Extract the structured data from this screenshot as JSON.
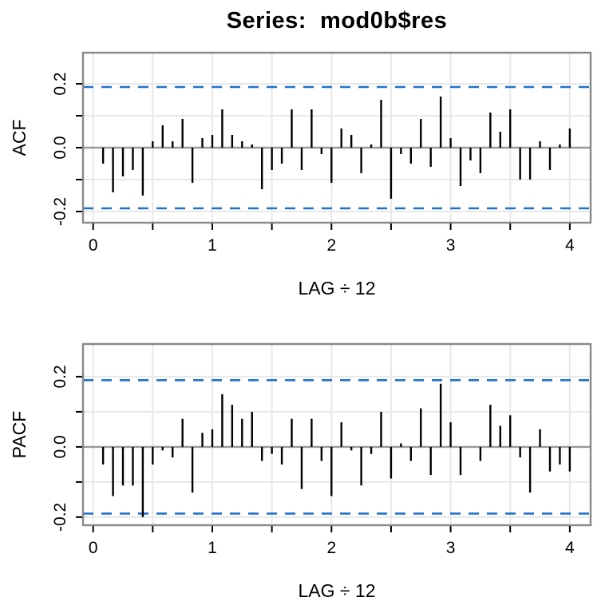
{
  "title": "Series:  mod0b$res",
  "colors": {
    "background": "#ffffff",
    "bar": "#000000",
    "box_border": "#888888",
    "zero_line": "#999999",
    "grid": "#e8e8e8",
    "ci_line": "#2273c8",
    "text": "#000000"
  },
  "chart_data": [
    {
      "type": "bar",
      "name": "acf",
      "ylabel": "ACF",
      "xlabel": "LAG ÷ 12",
      "lag_divisor": 12,
      "ci": 0.19,
      "ci_style": "dashed",
      "grid": true,
      "legend": null,
      "xlim": [
        -0.085,
        4.175
      ],
      "ylim": [
        -0.235,
        0.2975
      ],
      "xticks": [
        0,
        0.5,
        1,
        1.5,
        2,
        2.5,
        3,
        3.5,
        4
      ],
      "xtick_labels": [
        "0",
        "",
        "1",
        "",
        "2",
        "",
        "3",
        "",
        "4"
      ],
      "yticks": [
        0.2,
        0.1,
        0,
        -0.1,
        -0.2
      ],
      "ytick_labels": [
        "0.2",
        "",
        "0.0",
        "",
        "-0.2"
      ],
      "lags": [
        1,
        2,
        3,
        4,
        5,
        6,
        7,
        8,
        9,
        10,
        11,
        12,
        13,
        14,
        15,
        16,
        17,
        18,
        19,
        20,
        21,
        22,
        23,
        24,
        25,
        26,
        27,
        28,
        29,
        30,
        31,
        32,
        33,
        34,
        35,
        36,
        37,
        38,
        39,
        40,
        41,
        42,
        43,
        44,
        45,
        46,
        47,
        48
      ],
      "values": [
        -0.05,
        -0.14,
        -0.09,
        -0.07,
        -0.15,
        0.02,
        0.07,
        0.02,
        0.09,
        -0.11,
        0.03,
        0.04,
        0.12,
        0.04,
        0.02,
        0.01,
        -0.13,
        -0.07,
        -0.05,
        0.12,
        -0.07,
        0.12,
        -0.02,
        -0.11,
        0.06,
        0.04,
        -0.08,
        0.01,
        0.15,
        -0.16,
        -0.02,
        -0.05,
        0.09,
        -0.06,
        0.16,
        0.03,
        -0.12,
        -0.04,
        -0.08,
        0.11,
        0.05,
        0.12,
        -0.1,
        -0.1,
        0.02,
        -0.07,
        0.01,
        0.06
      ]
    },
    {
      "type": "bar",
      "name": "pacf",
      "ylabel": "PACF",
      "xlabel": "LAG ÷ 12",
      "lag_divisor": 12,
      "ci": 0.19,
      "ci_style": "dashed",
      "grid": true,
      "legend": null,
      "xlim": [
        -0.085,
        4.175
      ],
      "ylim": [
        -0.223,
        0.293
      ],
      "xticks": [
        0,
        0.5,
        1,
        1.5,
        2,
        2.5,
        3,
        3.5,
        4
      ],
      "xtick_labels": [
        "0",
        "",
        "1",
        "",
        "2",
        "",
        "3",
        "",
        "4"
      ],
      "yticks": [
        0.2,
        0.1,
        0,
        -0.1,
        -0.2
      ],
      "ytick_labels": [
        "0.2",
        "",
        "0.0",
        "",
        "-0.2"
      ],
      "lags": [
        1,
        2,
        3,
        4,
        5,
        6,
        7,
        8,
        9,
        10,
        11,
        12,
        13,
        14,
        15,
        16,
        17,
        18,
        19,
        20,
        21,
        22,
        23,
        24,
        25,
        26,
        27,
        28,
        29,
        30,
        31,
        32,
        33,
        34,
        35,
        36,
        37,
        38,
        39,
        40,
        41,
        42,
        43,
        44,
        45,
        46,
        47,
        48
      ],
      "values": [
        -0.05,
        -0.14,
        -0.11,
        -0.11,
        -0.2,
        -0.05,
        -0.01,
        -0.03,
        0.08,
        -0.13,
        0.04,
        0.05,
        0.15,
        0.12,
        0.08,
        0.1,
        -0.04,
        -0.02,
        -0.05,
        0.08,
        -0.12,
        0.08,
        -0.04,
        -0.14,
        0.07,
        -0.01,
        -0.11,
        -0.02,
        0.1,
        -0.09,
        0.01,
        -0.04,
        0.11,
        -0.08,
        0.18,
        0.07,
        -0.08,
        0.0,
        -0.04,
        0.12,
        0.06,
        0.09,
        -0.03,
        -0.13,
        0.05,
        -0.07,
        -0.05,
        -0.07
      ]
    }
  ]
}
